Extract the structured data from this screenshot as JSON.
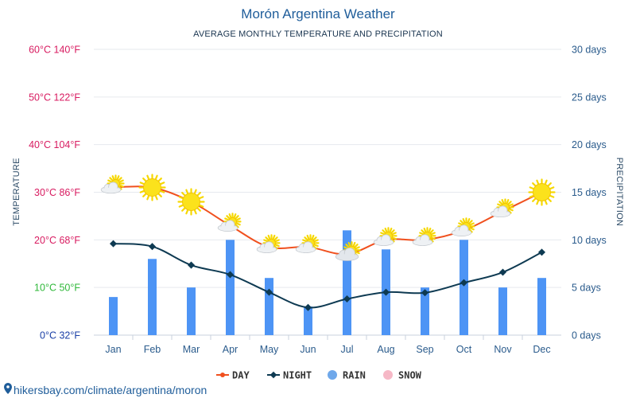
{
  "chart_data": {
    "type": "bar",
    "title": "Morón Argentina Weather",
    "subtitle": "AVERAGE MONTHLY TEMPERATURE AND PRECIPITATION",
    "left_axis_label": "TEMPERATURE",
    "right_axis_label": "PRECIPITATION",
    "categories": [
      "Jan",
      "Feb",
      "Mar",
      "Apr",
      "May",
      "Jun",
      "Jul",
      "Aug",
      "Sep",
      "Oct",
      "Nov",
      "Dec"
    ],
    "temperature_ticks": [
      {
        "value": 0,
        "label": "0°C 32°F",
        "color": "#1a3fa6"
      },
      {
        "value": 10,
        "label": "10°C 50°F",
        "color": "#2fb83a"
      },
      {
        "value": 20,
        "label": "20°C 68°F",
        "color": "#d81b60"
      },
      {
        "value": 30,
        "label": "30°C 86°F",
        "color": "#d81b60"
      },
      {
        "value": 40,
        "label": "40°C 104°F",
        "color": "#d81b60"
      },
      {
        "value": 50,
        "label": "50°C 122°F",
        "color": "#d81b60"
      },
      {
        "value": 60,
        "label": "60°C 140°F",
        "color": "#d81b60"
      }
    ],
    "precipitation_ticks": [
      "0 days",
      "5 days",
      "10 days",
      "15 days",
      "20 days",
      "25 days",
      "30 days"
    ],
    "temp_range": [
      0,
      60
    ],
    "precip_range": [
      0,
      30
    ],
    "series": [
      {
        "name": "DAY",
        "kind": "line",
        "color": "#f0501e",
        "values": [
          31,
          31,
          28,
          23,
          18.5,
          18.5,
          17,
          20,
          20,
          22,
          26,
          30
        ]
      },
      {
        "name": "NIGHT",
        "kind": "line",
        "color": "#0e3a52",
        "values": [
          19.2,
          18.6,
          14.7,
          12.7,
          9,
          5.8,
          7.6,
          9,
          8.9,
          11,
          13.2,
          17.4
        ]
      },
      {
        "name": "RAIN",
        "kind": "bar",
        "color": "#4d94f5",
        "legend_color": "#6fa8ea",
        "values": [
          4,
          8,
          5,
          10,
          6,
          3,
          11,
          9,
          5,
          10,
          5,
          6
        ]
      },
      {
        "name": "SNOW",
        "kind": "bar",
        "color": "#f6b8c6",
        "values": [
          0,
          0,
          0,
          0,
          0,
          0,
          0,
          0,
          0,
          0,
          0,
          0
        ]
      }
    ],
    "weather_icons": [
      "partly-cloudy-icon",
      "sun-icon",
      "sun-icon",
      "partly-cloudy-icon",
      "partly-cloudy-icon",
      "partly-cloudy-icon",
      "cloudy-icon",
      "partly-cloudy-icon",
      "partly-cloudy-icon",
      "partly-cloudy-icon",
      "partly-cloudy-icon",
      "sun-icon"
    ],
    "grid": true,
    "legend_position": "bottom-center"
  },
  "footer": {
    "url": "hikersbay.com/climate/argentina/moron",
    "icon": "location-pin-icon",
    "color": "#1f5d9a"
  }
}
